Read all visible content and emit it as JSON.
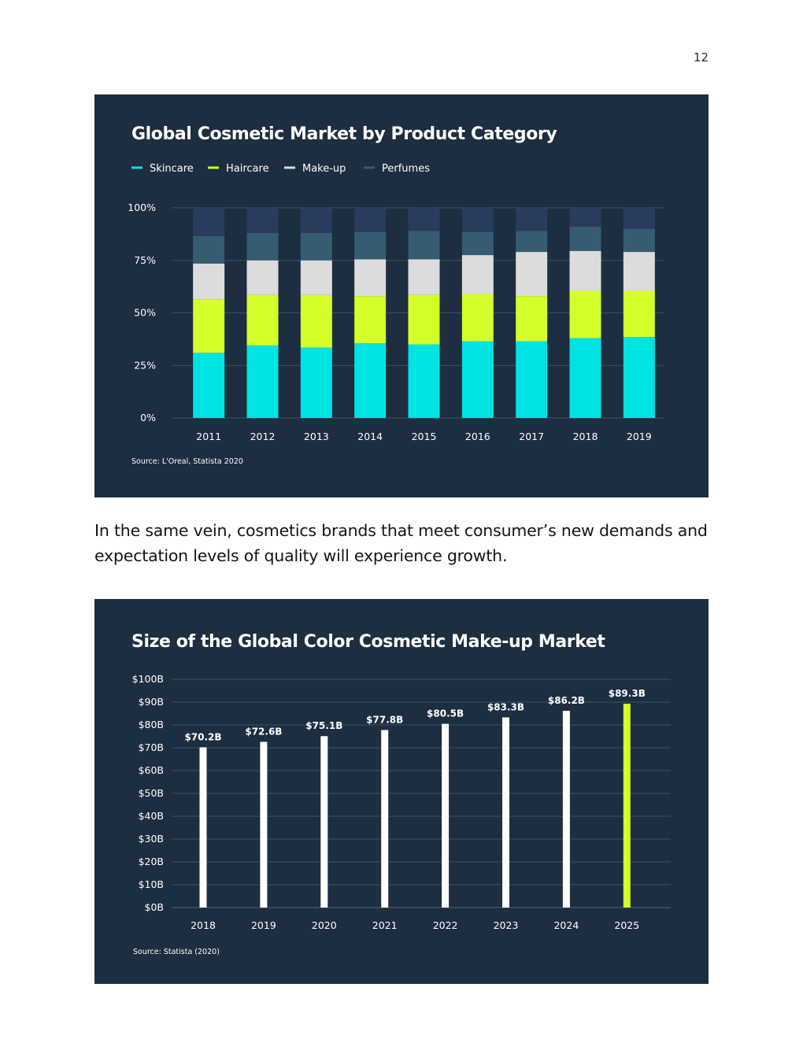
{
  "page_number": "12",
  "paragraph": "In the same vein, cosmetics brands that meet consumer’s new demands and expectation levels of quality will experience growth.",
  "colors": {
    "panel_bg": "#1c2e40",
    "skincare": "#00e3e3",
    "haircare": "#d4ff2a",
    "makeup": "#dcdcdc",
    "perfumes": "#355c70",
    "other": "#2a3c5e",
    "bar_white": "#ffffff",
    "bar_highlight": "#d4ff2a",
    "grid": "#3c5266"
  },
  "chart_data": [
    {
      "type": "bar",
      "stacked": true,
      "title": "Global Cosmetic Market by Product Category",
      "categories": [
        "2011",
        "2012",
        "2013",
        "2014",
        "2015",
        "2016",
        "2017",
        "2018",
        "2019"
      ],
      "series": [
        {
          "name": "Skincare",
          "color": "#00e3e3",
          "values": [
            31,
            34.5,
            33.5,
            35.5,
            35,
            36.5,
            36.5,
            38,
            38.5
          ]
        },
        {
          "name": "Haircare",
          "color": "#d4ff2a",
          "values": [
            25.5,
            24,
            25,
            22.5,
            23.5,
            22.5,
            21.5,
            22.5,
            22
          ]
        },
        {
          "name": "Make-up",
          "color": "#dcdcdc",
          "values": [
            17,
            16.5,
            16.5,
            17.5,
            17,
            18.5,
            21,
            19,
            18.5
          ]
        },
        {
          "name": "Perfumes",
          "color": "#355c70",
          "values": [
            13,
            13,
            13,
            13,
            13.5,
            11,
            10,
            11.5,
            11
          ]
        },
        {
          "name": "",
          "color": "#2a3c5e",
          "values": [
            13.5,
            12,
            12,
            11.5,
            11,
            11.5,
            11,
            9,
            10
          ]
        }
      ],
      "yticks": [
        "0%",
        "25%",
        "50%",
        "75%",
        "100%"
      ],
      "ylim": [
        0,
        100
      ],
      "legend_position": "top-left",
      "source": "Source: L'Oreal, Statista 2020"
    },
    {
      "type": "bar",
      "title": "Size of the Global Color Cosmetic Make-up Market",
      "categories": [
        "2018",
        "2019",
        "2020",
        "2021",
        "2022",
        "2023",
        "2024",
        "2025"
      ],
      "values": [
        70.2,
        72.6,
        75.1,
        77.8,
        80.5,
        83.3,
        86.2,
        89.3
      ],
      "data_labels": [
        "$70.2B",
        "$72.6B",
        "$75.1B",
        "$77.8B",
        "$80.5B",
        "$83.3B",
        "$86.2B",
        "$89.3B"
      ],
      "highlight_index": 7,
      "yticks": [
        "$0B",
        "$10B",
        "$20B",
        "$30B",
        "$40B",
        "$50B",
        "$60B",
        "$70B",
        "$80B",
        "$90B",
        "$100B"
      ],
      "ylim": [
        0,
        100
      ],
      "source": "Source: Statista (2020)"
    }
  ]
}
